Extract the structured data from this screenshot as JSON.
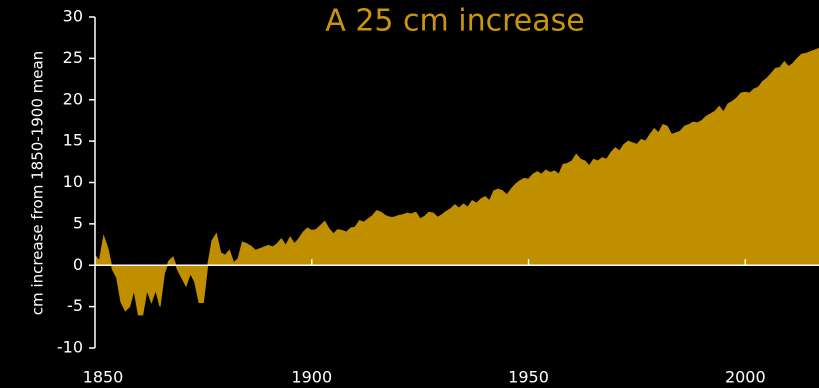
{
  "chart_data": {
    "type": "area",
    "title": "A 25 cm increase",
    "y_label": "cm increase from 1850-1900 mean",
    "color": "#bf8f00",
    "title_color": "#c9950c",
    "xlim": [
      1850,
      2017
    ],
    "xticks": [
      1850,
      1900,
      1950,
      2000
    ],
    "ylim": [
      -10,
      30
    ],
    "yticks": [
      -10,
      -5,
      0,
      5,
      10,
      15,
      20,
      25,
      30
    ],
    "x": [
      1850,
      1851,
      1852,
      1853,
      1854,
      1855,
      1856,
      1857,
      1858,
      1859,
      1860,
      1861,
      1862,
      1863,
      1864,
      1865,
      1866,
      1867,
      1868,
      1869,
      1870,
      1871,
      1872,
      1873,
      1874,
      1875,
      1876,
      1877,
      1878,
      1879,
      1880,
      1881,
      1882,
      1883,
      1884,
      1885,
      1886,
      1887,
      1888,
      1889,
      1890,
      1891,
      1892,
      1893,
      1894,
      1895,
      1896,
      1897,
      1898,
      1899,
      1900,
      1901,
      1902,
      1903,
      1904,
      1905,
      1906,
      1907,
      1908,
      1909,
      1910,
      1911,
      1912,
      1913,
      1914,
      1915,
      1916,
      1917,
      1918,
      1919,
      1920,
      1921,
      1922,
      1923,
      1924,
      1925,
      1926,
      1927,
      1928,
      1929,
      1930,
      1931,
      1932,
      1933,
      1934,
      1935,
      1936,
      1937,
      1938,
      1939,
      1940,
      1941,
      1942,
      1943,
      1944,
      1945,
      1946,
      1947,
      1948,
      1949,
      1950,
      1951,
      1952,
      1953,
      1954,
      1955,
      1956,
      1957,
      1958,
      1959,
      1960,
      1961,
      1962,
      1963,
      1964,
      1965,
      1966,
      1967,
      1968,
      1969,
      1970,
      1971,
      1972,
      1973,
      1974,
      1975,
      1976,
      1977,
      1978,
      1979,
      1980,
      1981,
      1982,
      1983,
      1984,
      1985,
      1986,
      1987,
      1988,
      1989,
      1990,
      1991,
      1992,
      1993,
      1994,
      1995,
      1996,
      1997,
      1998,
      1999,
      2000,
      2001,
      2002,
      2003,
      2004,
      2005,
      2006,
      2007,
      2008,
      2009,
      2010,
      2011,
      2012,
      2013,
      2014,
      2015,
      2016,
      2017
    ],
    "values": [
      1.2,
      0.5,
      3.5,
      2,
      -0.5,
      -1.5,
      -4.5,
      -5.5,
      -5,
      -3,
      -6,
      -6,
      -3,
      -4.5,
      -3,
      -5,
      -1,
      0.5,
      1,
      -0.5,
      -1.5,
      -2.5,
      -1,
      -2,
      -4.5,
      -4.5,
      0,
      3,
      3.8,
      1.5,
      1.2,
      1.8,
      0.3,
      0.8,
      2.8,
      2.6,
      2.3,
      1.8,
      2,
      2.2,
      2.4,
      2.2,
      2.6,
      3.2,
      2.4,
      3.4,
      2.6,
      3.2,
      4,
      4.5,
      4.2,
      4.3,
      4.8,
      5.3,
      4.4,
      3.8,
      4.3,
      4.2,
      4,
      4.5,
      4.6,
      5.4,
      5.2,
      5.6,
      6,
      6.6,
      6.4,
      6,
      5.8,
      5.8,
      6,
      6.1,
      6.3,
      6.2,
      6.4,
      5.6,
      5.9,
      6.4,
      6.3,
      5.8,
      6.1,
      6.5,
      6.8,
      7.3,
      6.9,
      7.4,
      7,
      7.8,
      7.5,
      8,
      8.3,
      7.8,
      9,
      9.2,
      9,
      8.5,
      9.2,
      9.8,
      10.2,
      10.5,
      10.4,
      11,
      11.3,
      11,
      11.5,
      11.2,
      11.4,
      11,
      12.2,
      12.3,
      12.6,
      13.4,
      12.8,
      12.6,
      12,
      12.8,
      12.6,
      13,
      12.8,
      13.6,
      14.2,
      13.8,
      14.6,
      15,
      14.8,
      14.6,
      15.2,
      15,
      15.8,
      16.5,
      16,
      17,
      16.8,
      15.8,
      16,
      16.2,
      16.8,
      17,
      17.3,
      17.2,
      17.5,
      18,
      18.3,
      18.6,
      19.2,
      18.5,
      19.5,
      19.8,
      20.2,
      20.8,
      20.9,
      20.8,
      21.3,
      21.5,
      22.2,
      22.6,
      23.2,
      23.8,
      23.9,
      24.6,
      24,
      24.4,
      25,
      25.5,
      25.6,
      25.8,
      26,
      26.2
    ]
  }
}
